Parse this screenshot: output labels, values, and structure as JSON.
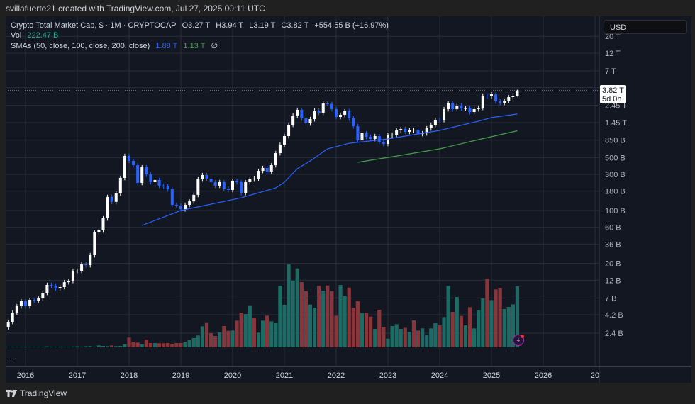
{
  "header": {
    "credit": "svillafuerte21 created with TradingView.com, Jul 27, 2025 00:11 UTC"
  },
  "legend": {
    "symbol": "Crypto Total Market Cap, $ · 1M · CRYPTOCAP",
    "open": "O3.27 T",
    "high": "H3.94 T",
    "low": "L3.19 T",
    "close": "C3.82 T",
    "change": "+554.55 B (+16.97%)",
    "vol_label": "Vol",
    "vol_value": "222.47 B",
    "sma_label": "SMAs (50, close, 100, close, 200, close)",
    "sma50_value": "1.88 T",
    "sma100_value": "1.13 T",
    "sma200_value": "∅"
  },
  "axis": {
    "currency": "USD",
    "price_label": "3.82 T",
    "countdown": "5d 0h",
    "price_ticks": [
      {
        "v": 20000,
        "t": "20 T"
      },
      {
        "v": 12000,
        "t": "12 T"
      },
      {
        "v": 7000,
        "t": "7 T"
      },
      {
        "v": 2450,
        "t": "2.45 T"
      },
      {
        "v": 1450,
        "t": "1.45 T"
      },
      {
        "v": 850,
        "t": "850 B"
      },
      {
        "v": 500,
        "t": "500 B"
      },
      {
        "v": 300,
        "t": "300 B"
      },
      {
        "v": 180,
        "t": "180 B"
      },
      {
        "v": 100,
        "t": "100 B"
      },
      {
        "v": 60,
        "t": "60 B"
      },
      {
        "v": 36,
        "t": "36 B"
      },
      {
        "v": 20,
        "t": "20 B"
      },
      {
        "v": 12,
        "t": "12 B"
      },
      {
        "v": 7,
        "t": "7 B"
      },
      {
        "v": 4.2,
        "t": "4.2 B"
      },
      {
        "v": 2.4,
        "t": "2.4 B"
      }
    ],
    "year_ticks": [
      "2016",
      "2017",
      "2018",
      "2019",
      "2020",
      "2021",
      "2022",
      "2023",
      "2024",
      "2025",
      "2026",
      "20"
    ]
  },
  "footer": {
    "logo": "TradingView",
    "more": "..."
  },
  "colors": {
    "up": "#ffffff",
    "down": "#2962ff",
    "vol_up": "#1d6b65",
    "vol_down": "#87363c",
    "sma50": "#2962ff",
    "sma100": "#43a047",
    "grid": "#2a2e39",
    "bg": "#131722"
  },
  "chart_data": {
    "type": "candlestick",
    "interval": "1M",
    "scale": "log",
    "units": "USD billions",
    "start": "2015-09",
    "close": [
      3.39,
      4.49,
      5.44,
      6.33,
      5.44,
      6.61,
      6.47,
      6.9,
      8.2,
      10.4,
      10.2,
      9.33,
      9.75,
      11.3,
      11.8,
      16.0,
      16.0,
      19.4,
      19.0,
      25.7,
      51.3,
      54.7,
      78.9,
      151,
      130,
      168,
      270,
      526,
      452,
      397,
      232,
      372,
      300,
      237,
      253,
      213,
      208,
      191,
      119,
      116,
      104,
      119,
      132,
      161,
      258,
      294,
      264,
      237,
      213,
      237,
      195,
      187,
      247,
      237,
      171,
      237,
      258,
      264,
      334,
      365,
      327,
      397,
      573,
      743,
      962,
      1358,
      1799,
      2138,
      1648,
      1419,
      1614,
      2091,
      1960,
      2594,
      2560,
      2183,
      1722,
      1837,
      2047,
      1648,
      1301,
      845,
      1049,
      942,
      883,
      962,
      809,
      759,
      984,
      1005,
      1143,
      1194,
      1095,
      1143,
      1167,
      1026,
      1049,
      1219,
      1358,
      1580,
      1570,
      2183,
      2594,
      2183,
      2432,
      2230,
      2240,
      2000,
      2183,
      2279,
      3289,
      3215,
      3433,
      2767,
      2649,
      2826,
      3147,
      3270,
      3820
    ],
    "last_candle": {
      "open": 3270,
      "high": 3940,
      "low": 3190,
      "close": 3820
    },
    "volume": [
      1,
      1,
      1.2,
      1.5,
      1.3,
      1.5,
      1.2,
      1.4,
      2,
      3.5,
      2.5,
      2,
      1.8,
      2,
      2.2,
      3,
      3.5,
      2.8,
      4,
      4.5,
      2.6,
      6.9,
      5.2,
      4.3,
      6.9,
      4.3,
      5.2,
      11.2,
      35.3,
      20.7,
      17.2,
      11.2,
      28.4,
      15.5,
      15.5,
      14.7,
      14.7,
      15.5,
      11.2,
      15.5,
      15.5,
      18.1,
      25.9,
      33.6,
      43.1,
      76.7,
      88.8,
      51.7,
      41.4,
      54.3,
      77.6,
      60.3,
      61.2,
      97.4,
      126.7,
      121.5,
      150.9,
      107.8,
      53.4,
      97.4,
      115.5,
      94.8,
      87.9,
      225,
      154.3,
      302.6,
      243.1,
      287.9,
      237.9,
      205.2,
      156,
      144.8,
      224.1,
      206.9,
      225.8,
      205.2,
      115.5,
      227.6,
      186.2,
      218.1,
      144,
      168.1,
      125,
      125.9,
      112.1,
      67.2,
      137.1,
      73.3,
      31.9,
      77.6,
      84.5,
      67.2,
      71.5,
      56.9,
      98.3,
      61.2,
      69,
      45.7,
      69,
      87.9,
      80.2,
      110.3,
      224.1,
      129.3,
      183.6,
      114.6,
      80.2,
      146.5,
      69,
      135.3,
      178.4,
      250,
      172.4,
      211.2,
      217.2,
      139.6,
      147.4,
      156.9,
      222.47
    ],
    "volume_up": [
      1,
      1,
      1,
      1,
      1,
      1,
      1,
      1,
      1,
      1,
      1,
      1,
      1,
      1,
      1,
      1,
      1,
      1,
      1,
      1,
      1,
      1,
      1,
      1,
      0,
      1,
      1,
      1,
      0,
      0,
      0,
      1,
      0,
      0,
      1,
      0,
      0,
      0,
      0,
      0,
      0,
      1,
      1,
      1,
      1,
      1,
      0,
      0,
      0,
      1,
      0,
      0,
      1,
      0,
      0,
      1,
      1,
      0,
      1,
      1,
      0,
      1,
      1,
      1,
      1,
      1,
      1,
      1,
      0,
      0,
      1,
      1,
      0,
      1,
      0,
      0,
      0,
      1,
      1,
      0,
      0,
      0,
      1,
      0,
      0,
      1,
      0,
      0,
      1,
      1,
      1,
      1,
      0,
      1,
      0,
      0,
      1,
      1,
      1,
      1,
      0,
      1,
      1,
      0,
      1,
      0,
      1,
      0,
      1,
      1,
      1,
      0,
      1,
      0,
      0,
      1,
      1,
      1,
      1
    ],
    "sma50": [
      [
        "2018-04",
        63.6
      ],
      [
        "2019-01",
        100
      ],
      [
        "2020-03",
        147
      ],
      [
        "2020-11",
        199
      ],
      [
        "2021-01",
        237
      ],
      [
        "2021-04",
        357
      ],
      [
        "2021-07",
        452
      ],
      [
        "2021-11",
        652
      ],
      [
        "2022-04",
        774
      ],
      [
        "2023-01",
        883
      ],
      [
        "2024-01",
        1143
      ],
      [
        "2024-10",
        1516
      ],
      [
        "2025-01",
        1689
      ],
      [
        "2025-07",
        1880
      ]
    ],
    "sma100": [
      [
        "2022-06",
        433
      ],
      [
        "2023-01",
        503
      ],
      [
        "2024-01",
        652
      ],
      [
        "2024-10",
        863
      ],
      [
        "2025-07",
        1130
      ]
    ]
  }
}
